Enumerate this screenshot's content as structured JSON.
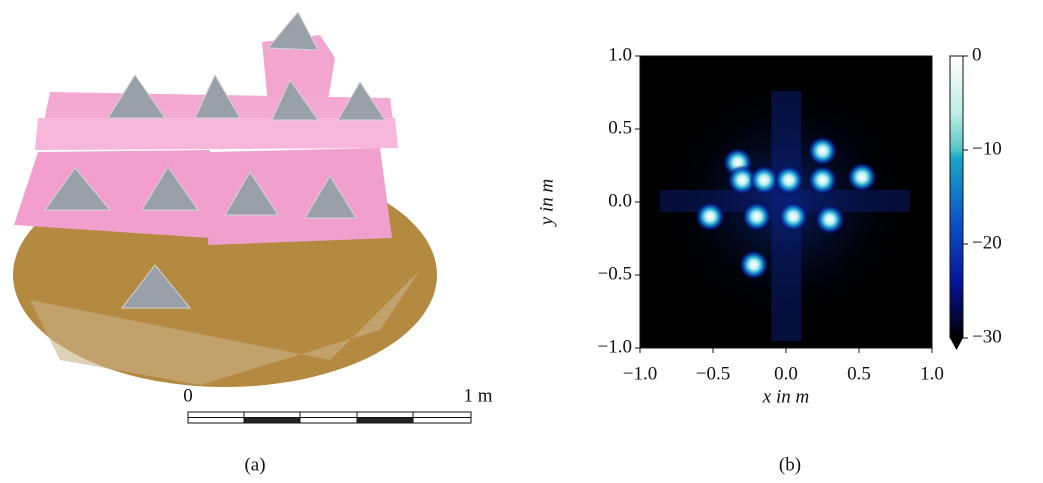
{
  "panel_a": {
    "scale_start": "0",
    "scale_end": "1 m",
    "caption": "(a)"
  },
  "chart_data": {
    "type": "heatmap",
    "xlabel": "x in m",
    "ylabel": "y in m",
    "caption": "(b)",
    "xlim": [
      -1,
      1
    ],
    "ylim": [
      -1,
      1
    ],
    "xticks": [
      {
        "value": -1,
        "label": "−1.0"
      },
      {
        "value": -0.5,
        "label": "−0.5"
      },
      {
        "value": 0,
        "label": "0.0"
      },
      0.5,
      {
        "value": 1,
        "label": "1.0"
      }
    ],
    "yticks": [
      {
        "value": -1,
        "label": "−1.0"
      },
      {
        "value": -0.5,
        "label": "−0.5"
      },
      {
        "value": 0,
        "label": "0.0"
      },
      0.5,
      {
        "value": 1,
        "label": "1.0"
      }
    ],
    "clim": [
      -30,
      0
    ],
    "cticks": [
      {
        "value": 0,
        "label": "0"
      },
      {
        "value": -10,
        "label": "−10"
      },
      {
        "value": -20,
        "label": "−20"
      },
      {
        "value": -30,
        "label": "−30"
      }
    ],
    "peaks": {
      "x": [
        -0.52,
        -0.33,
        -0.3,
        -0.2,
        -0.22,
        -0.15,
        0.02,
        0.05,
        0.25,
        0.25,
        0.3,
        0.52
      ],
      "y": [
        -0.1,
        0.27,
        0.15,
        -0.1,
        -0.43,
        0.15,
        0.15,
        -0.1,
        0.35,
        0.15,
        -0.12,
        0.17
      ]
    }
  }
}
